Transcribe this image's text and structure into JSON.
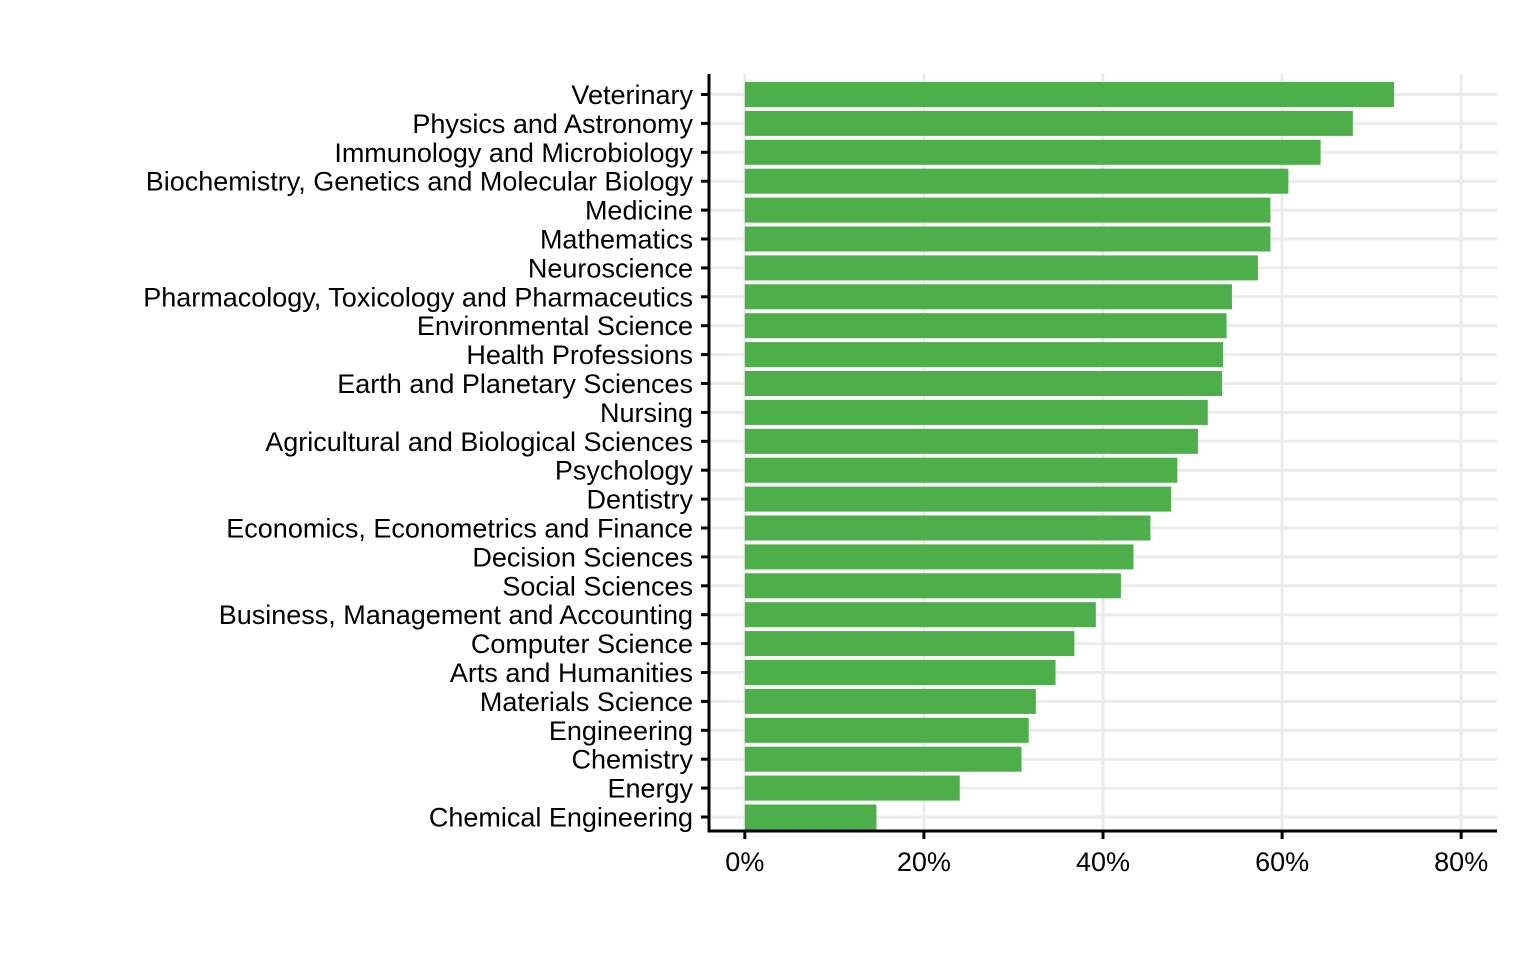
{
  "chart_data": {
    "type": "bar",
    "orientation": "horizontal",
    "title": "",
    "xlabel": "",
    "ylabel": "",
    "categories": [
      "Veterinary",
      "Physics and Astronomy",
      "Immunology and Microbiology",
      "Biochemistry, Genetics and Molecular Biology",
      "Medicine",
      "Mathematics",
      "Neuroscience",
      "Pharmacology, Toxicology and Pharmaceutics",
      "Environmental Science",
      "Health Professions",
      "Earth and Planetary Sciences",
      "Nursing",
      "Agricultural and Biological Sciences",
      "Psychology",
      "Dentistry",
      "Economics, Econometrics and Finance",
      "Decision Sciences",
      "Social Sciences",
      "Business, Management and Accounting",
      "Computer Science",
      "Arts and Humanities",
      "Materials Science",
      "Engineering",
      "Chemistry",
      "Energy",
      "Chemical Engineering"
    ],
    "values": [
      72.5,
      67.9,
      64.3,
      60.7,
      58.7,
      58.7,
      57.3,
      54.4,
      53.8,
      53.4,
      53.3,
      51.7,
      50.6,
      48.3,
      47.6,
      45.3,
      43.4,
      42.0,
      39.2,
      36.8,
      34.7,
      32.5,
      31.7,
      30.9,
      24.0,
      14.7
    ],
    "xlim": [
      -4,
      84
    ],
    "xticks": [
      0,
      20,
      40,
      60,
      80
    ],
    "xtick_labels": [
      "0%",
      "20%",
      "40%",
      "60%",
      "80%"
    ],
    "bar_color": "#4daf4a",
    "grid": true,
    "grid_color": "#ebebeb",
    "legend": "none"
  }
}
